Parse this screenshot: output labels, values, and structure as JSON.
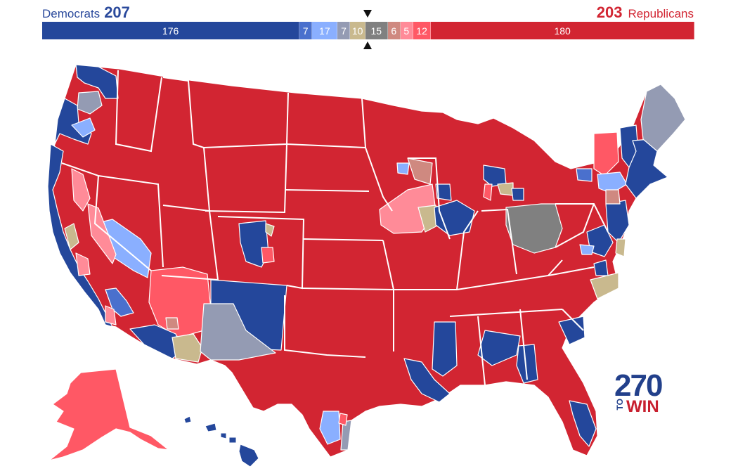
{
  "header": {
    "dem_label": "Democrats",
    "dem_total": "207",
    "rep_total": "203",
    "rep_label": "Republicans"
  },
  "bar": {
    "segments": [
      {
        "key": "safe_d",
        "label": "176",
        "value": 176,
        "color": "#24479b"
      },
      {
        "key": "likely_d",
        "label": "7",
        "value": 7,
        "color": "#4a70cd"
      },
      {
        "key": "leans_d",
        "label": "17",
        "value": 17,
        "color": "#8aafff"
      },
      {
        "key": "tilt_d",
        "label": "7",
        "value": 7,
        "color": "#949bb3"
      },
      {
        "key": "tossup",
        "label": "10",
        "value": 10,
        "color": "#c9b98e"
      },
      {
        "key": "undecided",
        "label": "15",
        "value": 15,
        "color": "#808080"
      },
      {
        "key": "tilt_r",
        "label": "6",
        "value": 6,
        "color": "#cf8980"
      },
      {
        "key": "leans_r",
        "label": "5",
        "value": 5,
        "color": "#ff8b98"
      },
      {
        "key": "likely_r",
        "label": "12",
        "value": 12,
        "color": "#ff5865"
      },
      {
        "key": "safe_r",
        "label": "180",
        "value": 180,
        "color": "#d22532"
      }
    ]
  },
  "logo": {
    "big": "270",
    "small": "TO",
    "win": "WIN"
  },
  "map_colors": {
    "safe_d": "#24479b",
    "likely_d": "#4a70cd",
    "leans_d": "#8aafff",
    "tilt_d": "#949bb3",
    "tossup": "#c9b98e",
    "undecided": "#808080",
    "tilt_r": "#cf8980",
    "leans_r": "#ff8b98",
    "likely_r": "#ff5865",
    "safe_r": "#d22532",
    "border": "#ffffff"
  }
}
